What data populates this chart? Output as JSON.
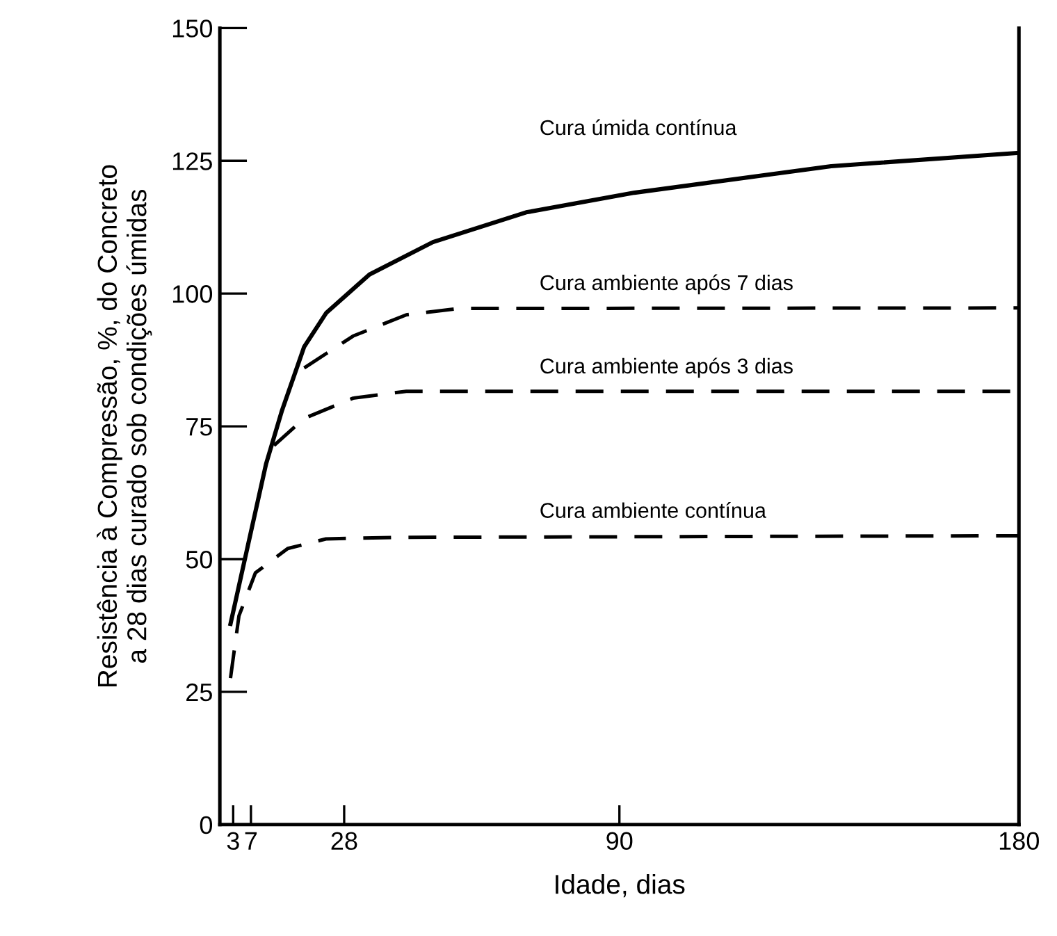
{
  "chart_data": {
    "type": "line",
    "xlabel": "Idade, dias",
    "ylabel": "Resistência à Compressão, %, do Concreto\na 28 dias curado sob condições úmidas",
    "xlim": [
      0,
      180
    ],
    "xticks": [
      3,
      7,
      28,
      90,
      180
    ],
    "ylim": [
      0,
      150
    ],
    "yticks": [
      0,
      25,
      50,
      75,
      100,
      125,
      150
    ],
    "grid": false,
    "legend": false,
    "marker": "none",
    "series": [
      {
        "name": "Cura úmida contínua",
        "color": "#000000",
        "line_style": "solid",
        "x": [
          2.4,
          5.5,
          10.4,
          14,
          19,
          24,
          33.7,
          48,
          69,
          93.4,
          137.7,
          180
        ],
        "values": [
          37.8,
          49.5,
          67.9,
          78,
          90,
          96.4,
          103.6,
          109.7,
          115.3,
          119,
          124,
          126.5
        ]
      },
      {
        "name": "Cura ambiente após 7 dias",
        "color": "#000000",
        "line_style": "dashed",
        "x": [
          19,
          30,
          42,
          54,
          180
        ],
        "values": [
          86,
          92,
          96,
          97.2,
          97.3
        ]
      },
      {
        "name": "Cura ambiente após 3 dias",
        "color": "#000000",
        "line_style": "dashed",
        "x": [
          12.2,
          19,
          30,
          42,
          180
        ],
        "values": [
          71.4,
          76.5,
          80.3,
          81.6,
          81.6
        ]
      },
      {
        "name": "Cura ambiente contínua",
        "color": "#000000",
        "line_style": "dashed",
        "x": [
          2.4,
          4.3,
          8,
          15.3,
          23.9,
          40,
          180
        ],
        "values": [
          27.6,
          39.3,
          47.4,
          52,
          53.8,
          54.1,
          54.4
        ]
      }
    ]
  }
}
